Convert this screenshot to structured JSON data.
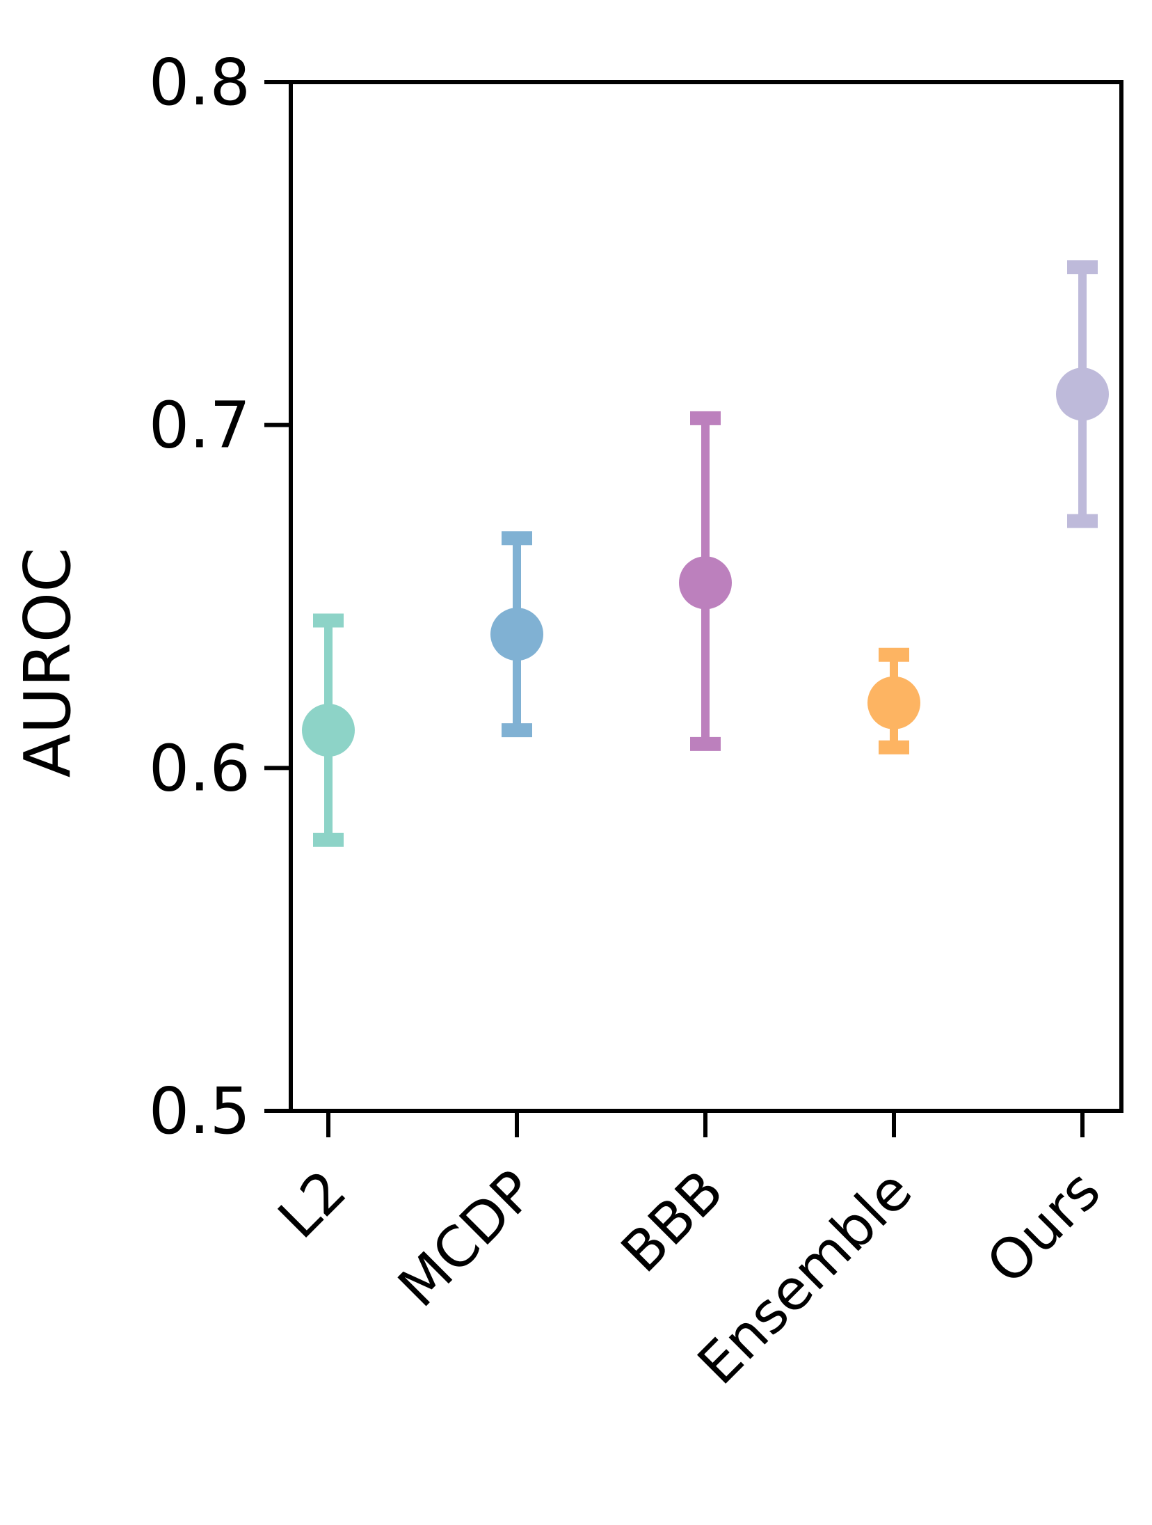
{
  "chart_data": {
    "type": "scatter",
    "subtype": "errorbar",
    "title": "",
    "xlabel": "",
    "ylabel": "AUROC",
    "categories": [
      "L2",
      "MCDP",
      "BBB",
      "Ensemble",
      "Ours"
    ],
    "points": [
      {
        "category": "L2",
        "value": 0.611,
        "err_low": 0.579,
        "err_high": 0.643,
        "color": "#8dd3c7"
      },
      {
        "category": "MCDP",
        "value": 0.639,
        "err_low": 0.611,
        "err_high": 0.667,
        "color": "#80b1d3"
      },
      {
        "category": "BBB",
        "value": 0.654,
        "err_low": 0.607,
        "err_high": 0.702,
        "color": "#bc80bd"
      },
      {
        "category": "Ensemble",
        "value": 0.619,
        "err_low": 0.606,
        "err_high": 0.633,
        "color": "#fdb462"
      },
      {
        "category": "Ours",
        "value": 0.709,
        "err_low": 0.672,
        "err_high": 0.746,
        "color": "#bebada"
      }
    ],
    "ylim": [
      0.5,
      0.8
    ],
    "yticks": [
      0.5,
      0.6,
      0.7,
      0.8
    ],
    "ytick_labels": [
      "0.5",
      "0.6",
      "0.7",
      "0.8"
    ],
    "xtick_rotation": 45,
    "grid": false,
    "legend": "none"
  }
}
